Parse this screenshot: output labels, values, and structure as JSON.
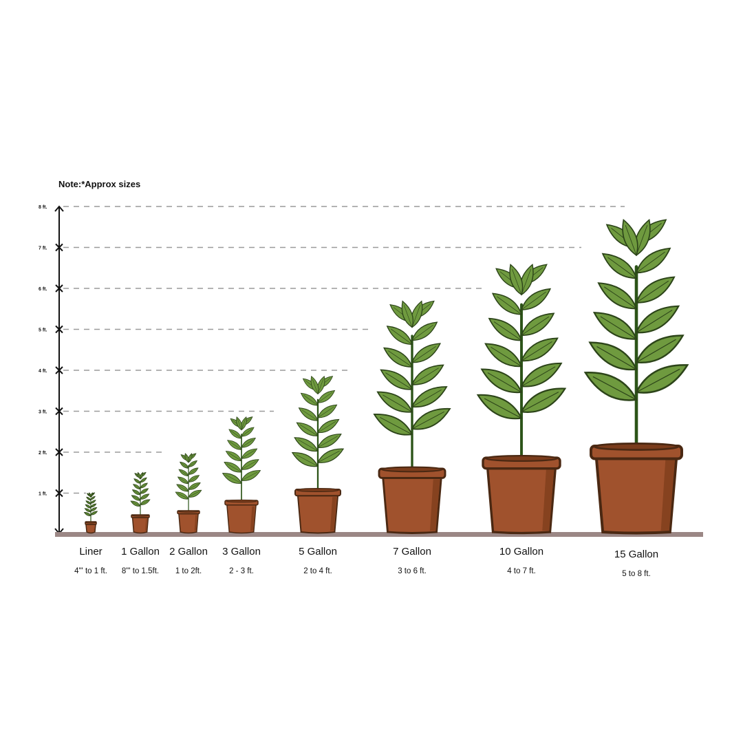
{
  "note": "Note:*Approx sizes",
  "axis": {
    "unit_labels": [
      "1 ft.",
      "2 ft.",
      "3 ft.",
      "4 ft.",
      "5 ft.",
      "6 ft.",
      "7 ft.",
      "8 ft."
    ],
    "max_ft": 8
  },
  "colors": {
    "leaf": "#6f9a3f",
    "leaf_outline": "#2c4419",
    "pot": "#a0522d",
    "pot_shadow": "#86421f",
    "pot_outline": "#4a2812",
    "ground": "#9b8785",
    "guide": "#9a9a9a"
  },
  "pots": [
    {
      "name": "Liner",
      "range": "4\"' to 1 ft.",
      "min_ft": 0.33,
      "max_ft": 1
    },
    {
      "name": "1 Gallon",
      "range": "8\"' to 1.5ft.",
      "min_ft": 0.67,
      "max_ft": 1.5
    },
    {
      "name": "2 Gallon",
      "range": "1 to 2ft.",
      "min_ft": 1,
      "max_ft": 2
    },
    {
      "name": "3 Gallon",
      "range": "2 - 3 ft.",
      "min_ft": 2,
      "max_ft": 3
    },
    {
      "name": "5 Gallon",
      "range": "2 to 4 ft.",
      "min_ft": 2,
      "max_ft": 4
    },
    {
      "name": "7 Gallon",
      "range": "3 to 6 ft.",
      "min_ft": 3,
      "max_ft": 6
    },
    {
      "name": "10 Gallon",
      "range": "4 to 7 ft.",
      "min_ft": 4,
      "max_ft": 7
    },
    {
      "name": "15 Gallon",
      "range": "5 to 8 ft.",
      "min_ft": 5,
      "max_ft": 8
    }
  ]
}
